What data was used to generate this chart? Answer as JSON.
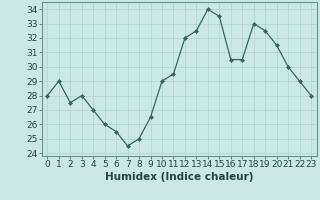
{
  "title": "",
  "xlabel": "Humidex (Indice chaleur)",
  "x": [
    0,
    1,
    2,
    3,
    4,
    5,
    6,
    7,
    8,
    9,
    10,
    11,
    12,
    13,
    14,
    15,
    16,
    17,
    18,
    19,
    20,
    21,
    22,
    23
  ],
  "y": [
    28,
    29,
    27.5,
    28,
    27,
    26,
    25.5,
    24.5,
    25,
    26.5,
    29,
    29.5,
    32,
    32.5,
    34,
    33.5,
    30.5,
    30.5,
    33,
    32.5,
    31.5,
    30,
    29,
    28
  ],
  "ylim": [
    23.8,
    34.5
  ],
  "yticks": [
    24,
    25,
    26,
    27,
    28,
    29,
    30,
    31,
    32,
    33,
    34
  ],
  "xticks": [
    0,
    1,
    2,
    3,
    4,
    5,
    6,
    7,
    8,
    9,
    10,
    11,
    12,
    13,
    14,
    15,
    16,
    17,
    18,
    19,
    20,
    21,
    22,
    23
  ],
  "line_color": "#2e6b5e",
  "marker_color": "#2e6b5e",
  "bg_color": "#cce8e4",
  "grid_color": "#aed4cf",
  "axis_label_fontsize": 7.5,
  "tick_fontsize": 6.5,
  "xlim_left": -0.5,
  "xlim_right": 23.5
}
